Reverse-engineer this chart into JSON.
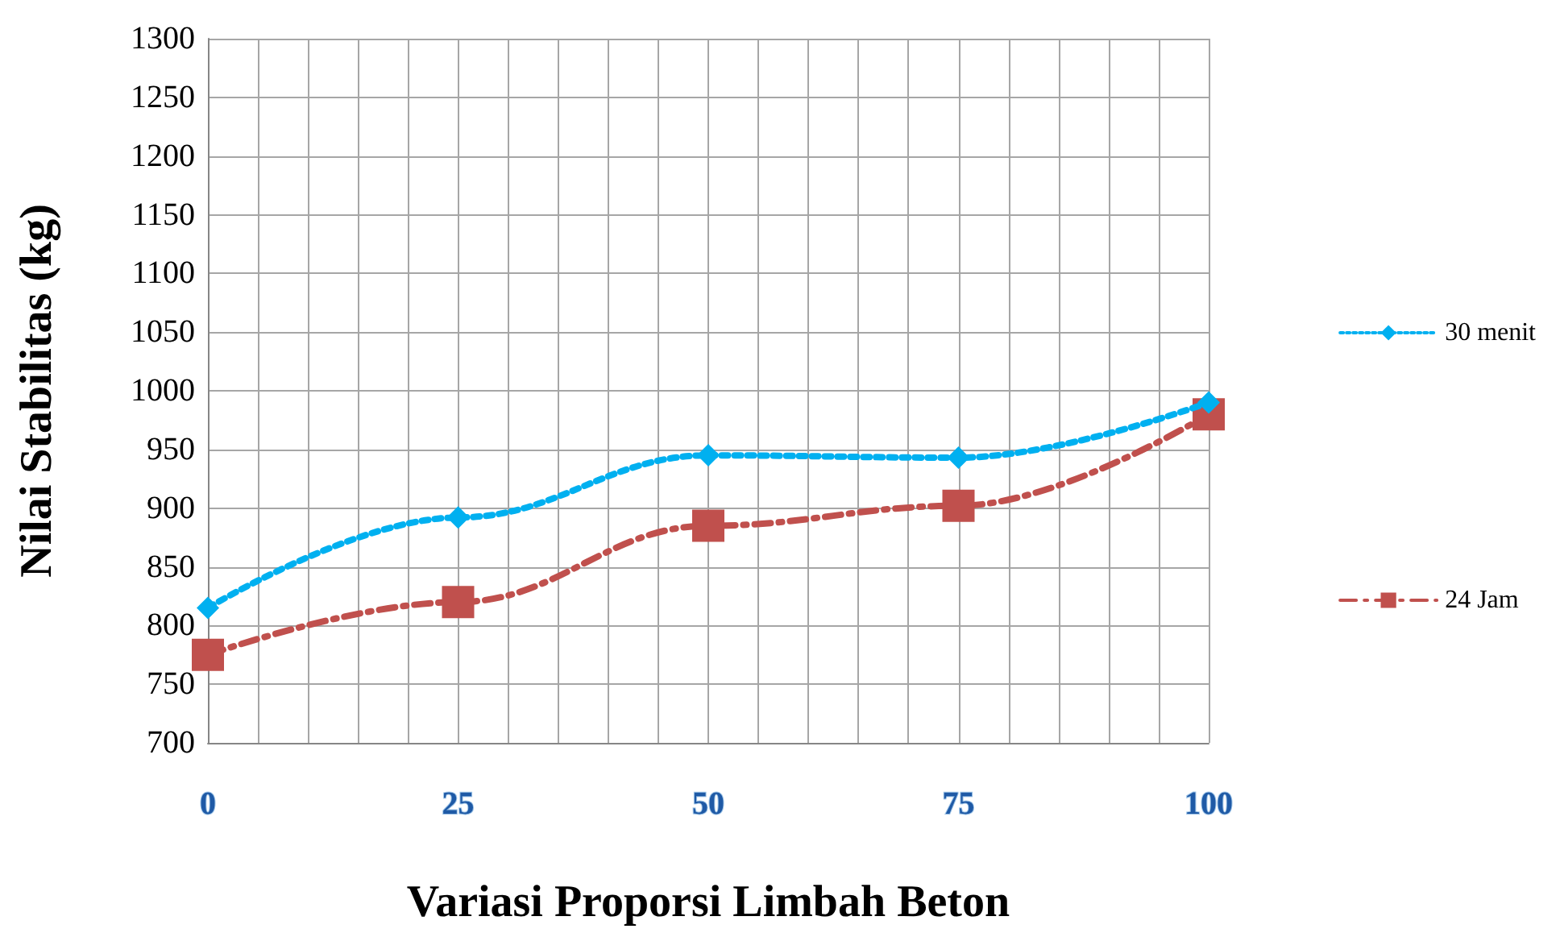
{
  "chart_data": {
    "type": "line",
    "xlabel": "Variasi Proporsi Limbah Beton",
    "ylabel": "Nilai Stabilitas (kg)",
    "xlim": [
      0,
      100
    ],
    "xticks": [
      0,
      {
        "value": 5,
        "label": null
      },
      {
        "value": 10,
        "label": null
      },
      {
        "value": 15,
        "label": null
      },
      {
        "value": 20,
        "label": null
      },
      25,
      {
        "value": 30,
        "label": null
      },
      {
        "value": 35,
        "label": null
      },
      {
        "value": 40,
        "label": null
      },
      {
        "value": 45,
        "label": null
      },
      50,
      {
        "value": 55,
        "label": null
      },
      {
        "value": 60,
        "label": null
      },
      {
        "value": 65,
        "label": null
      },
      {
        "value": 70,
        "label": null
      },
      75,
      {
        "value": 80,
        "label": null
      },
      {
        "value": 85,
        "label": null
      },
      {
        "value": 90,
        "label": null
      },
      {
        "value": 95,
        "label": null
      },
      100
    ],
    "ylim": [
      700,
      1300
    ],
    "yticks": [
      700,
      750,
      800,
      850,
      900,
      950,
      1000,
      1050,
      1100,
      1150,
      1200,
      1250,
      1300
    ],
    "grid": true,
    "legend": "right",
    "series": [
      {
        "name": "30 menit",
        "color": "#00b0f0",
        "marker": "diamond",
        "line_style": "dotted",
        "x": [
          0,
          25,
          50,
          75,
          100
        ],
        "values": [
          815,
          892,
          945,
          943,
          990
        ]
      },
      {
        "name": "24 Jam",
        "color": "#c0504d",
        "marker": "square",
        "line_style": "dashed",
        "x": [
          0,
          25,
          50,
          75,
          100
        ],
        "values": [
          775,
          820,
          885,
          902,
          980
        ]
      }
    ]
  }
}
